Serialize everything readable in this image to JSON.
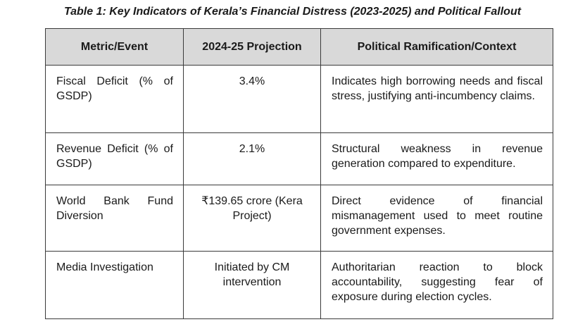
{
  "caption": "Table 1: Key Indicators of Kerala’s Financial Distress (2023-2025) and Political Fallout",
  "table": {
    "headers": [
      "Metric/Event",
      "2024-25 Projection",
      "Political Ramification/Context"
    ],
    "rows": [
      {
        "metric": "Fiscal Deficit (% of GSDP)",
        "projection": "3.4%",
        "context": "Indicates high borrowing needs and fiscal stress, justifying anti-incumbency claims."
      },
      {
        "metric": "Revenue Deficit (% of GSDP)",
        "projection": "2.1%",
        "context": "Structural weakness in revenue generation compared to expenditure."
      },
      {
        "metric": "World Bank Fund Diversion",
        "projection": "₹139.65 crore (Kera Project)",
        "context": "Direct evidence of financial mismanagement used to meet routine government expenses."
      },
      {
        "metric": "Media Investigation",
        "projection": "Initiated by CM intervention",
        "context": "Authoritarian reaction to block accountability, suggesting fear of exposure during election cycles."
      }
    ]
  }
}
